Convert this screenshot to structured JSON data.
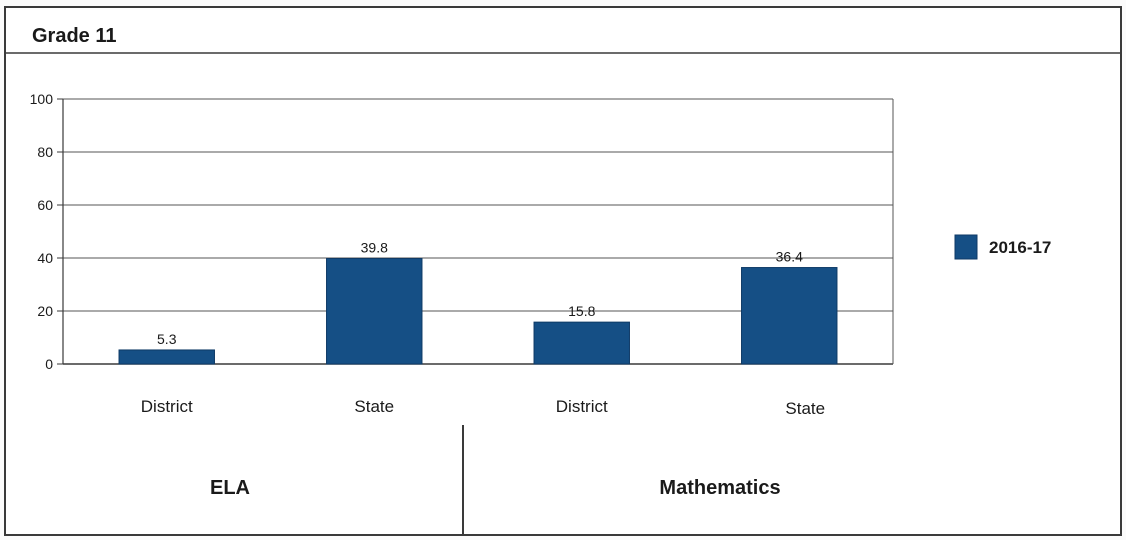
{
  "title": "Grade 11",
  "colors": {
    "bar": "#154f85",
    "bar_edge": "#0e3a66",
    "frame": "#3a3a3a",
    "grid": "#555555",
    "text": "#1a1a1a"
  },
  "chart_data": {
    "type": "bar",
    "categories": [
      "District",
      "State",
      "District",
      "State"
    ],
    "groups": [
      {
        "label": "ELA",
        "categories": [
          "District",
          "State"
        ]
      },
      {
        "label": "Mathematics",
        "categories": [
          "District",
          "State"
        ]
      }
    ],
    "series": [
      {
        "name": "2016-17",
        "values": [
          5.3,
          39.8,
          15.8,
          36.4
        ]
      }
    ],
    "data_labels": [
      "5.3",
      "39.8",
      "15.8",
      "36.4"
    ],
    "yticks": [
      0,
      20,
      40,
      60,
      80,
      100
    ],
    "ylim": [
      0,
      100
    ],
    "xlabel": "",
    "ylabel": "",
    "grid": true,
    "legend_position": "right"
  }
}
